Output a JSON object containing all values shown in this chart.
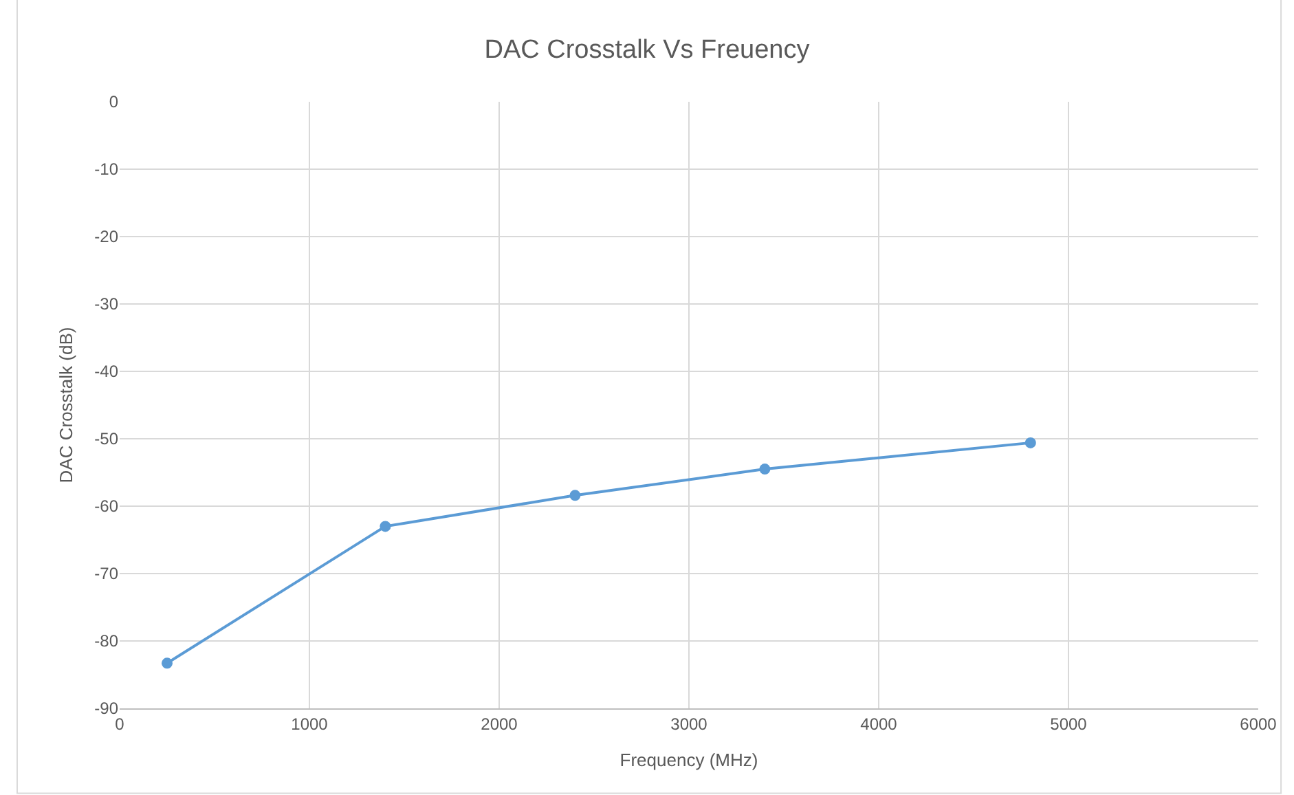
{
  "chart_data": {
    "type": "line",
    "title": "DAC Crosstalk Vs Freuency",
    "xlabel": "Frequency (MHz)",
    "ylabel": "DAC Crosstalk (dB)",
    "x": [
      250,
      1400,
      2400,
      3400,
      4800
    ],
    "series": [
      {
        "color": "#5b9bd5",
        "values": [
          -83.3,
          -63.0,
          -58.4,
          -54.5,
          -50.6
        ]
      }
    ],
    "xlim": [
      0,
      6000
    ],
    "xticks": [
      0,
      1000,
      2000,
      3000,
      4000,
      5000,
      6000
    ],
    "ylim": [
      -90,
      0
    ],
    "yticks": [
      -90,
      -80,
      -70,
      -60,
      -50,
      -40,
      -30,
      -20,
      -10,
      0
    ],
    "grid": true,
    "marker": "circle",
    "line_style": "solid"
  }
}
